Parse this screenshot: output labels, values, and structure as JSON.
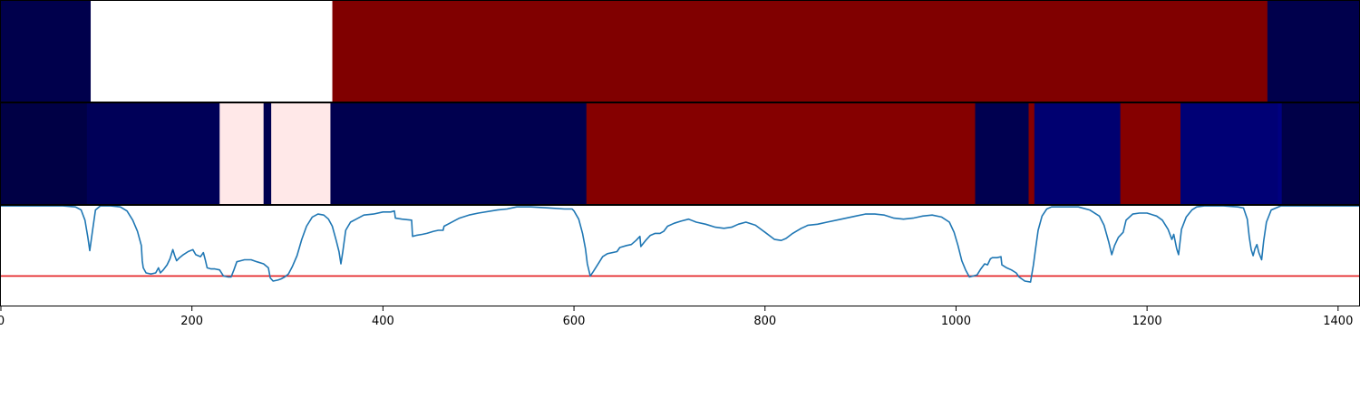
{
  "chart_data": {
    "type": "heatmap",
    "x_range": [
      0,
      1422
    ],
    "x_ticks": [
      0,
      200,
      400,
      600,
      800,
      1000,
      1200,
      1400
    ],
    "x_tick_labels": [
      "0",
      "200",
      "400",
      "600",
      "800",
      "1000",
      "1200",
      "1400"
    ],
    "tracks": [
      {
        "segments": [
          {
            "start": 0,
            "end": 94,
            "color": "#00004c"
          },
          {
            "start": 94,
            "end": 347,
            "color": "#ffffff"
          },
          {
            "start": 347,
            "end": 1326,
            "color": "#800000"
          },
          {
            "start": 1326,
            "end": 1422,
            "color": "#00004c"
          }
        ]
      },
      {
        "segments": [
          {
            "start": 0,
            "end": 90,
            "color": "#000045"
          },
          {
            "start": 90,
            "end": 229,
            "color": "#000058"
          },
          {
            "start": 229,
            "end": 275,
            "color": "#ffe8e8"
          },
          {
            "start": 275,
            "end": 283,
            "color": "#000050"
          },
          {
            "start": 283,
            "end": 345,
            "color": "#ffe8e8"
          },
          {
            "start": 345,
            "end": 613,
            "color": "#00004f"
          },
          {
            "start": 613,
            "end": 1020,
            "color": "#850000"
          },
          {
            "start": 1020,
            "end": 1076,
            "color": "#000050"
          },
          {
            "start": 1076,
            "end": 1082,
            "color": "#850000"
          },
          {
            "start": 1082,
            "end": 1172,
            "color": "#000070"
          },
          {
            "start": 1172,
            "end": 1235,
            "color": "#850000"
          },
          {
            "start": 1235,
            "end": 1337,
            "color": "#000075"
          },
          {
            "start": 1337,
            "end": 1341,
            "color": "#000080"
          },
          {
            "start": 1341,
            "end": 1422,
            "color": "#000048"
          }
        ]
      }
    ],
    "line": {
      "y_range": [
        0,
        1
      ],
      "threshold": 0.3,
      "threshold_color": "#e31a1c",
      "color": "#1f77b4",
      "points": [
        [
          0,
          0.99
        ],
        [
          20,
          0.99
        ],
        [
          40,
          0.99
        ],
        [
          65,
          0.99
        ],
        [
          78,
          0.98
        ],
        [
          84,
          0.95
        ],
        [
          88,
          0.85
        ],
        [
          91,
          0.68
        ],
        [
          93,
          0.55
        ],
        [
          96,
          0.75
        ],
        [
          99,
          0.95
        ],
        [
          104,
          0.99
        ],
        [
          115,
          0.99
        ],
        [
          125,
          0.98
        ],
        [
          132,
          0.94
        ],
        [
          138,
          0.85
        ],
        [
          143,
          0.74
        ],
        [
          147,
          0.6
        ],
        [
          148,
          0.45
        ],
        [
          149,
          0.38
        ],
        [
          152,
          0.33
        ],
        [
          157,
          0.32
        ],
        [
          162,
          0.33
        ],
        [
          165,
          0.38
        ],
        [
          167,
          0.33
        ],
        [
          170,
          0.36
        ],
        [
          174,
          0.41
        ],
        [
          177,
          0.47
        ],
        [
          180,
          0.56
        ],
        [
          182,
          0.5
        ],
        [
          184,
          0.45
        ],
        [
          187,
          0.48
        ],
        [
          191,
          0.51
        ],
        [
          196,
          0.54
        ],
        [
          201,
          0.56
        ],
        [
          204,
          0.51
        ],
        [
          209,
          0.49
        ],
        [
          212,
          0.53
        ],
        [
          214,
          0.46
        ],
        [
          216,
          0.38
        ],
        [
          220,
          0.37
        ],
        [
          224,
          0.37
        ],
        [
          229,
          0.36
        ],
        [
          233,
          0.3
        ],
        [
          238,
          0.29
        ],
        [
          241,
          0.29
        ],
        [
          244,
          0.36
        ],
        [
          247,
          0.44
        ],
        [
          251,
          0.45
        ],
        [
          255,
          0.46
        ],
        [
          262,
          0.46
        ],
        [
          268,
          0.44
        ],
        [
          275,
          0.42
        ],
        [
          280,
          0.38
        ],
        [
          282,
          0.28
        ],
        [
          285,
          0.25
        ],
        [
          290,
          0.26
        ],
        [
          293,
          0.27
        ],
        [
          297,
          0.29
        ],
        [
          301,
          0.32
        ],
        [
          305,
          0.39
        ],
        [
          310,
          0.5
        ],
        [
          315,
          0.66
        ],
        [
          320,
          0.79
        ],
        [
          326,
          0.88
        ],
        [
          332,
          0.91
        ],
        [
          338,
          0.9
        ],
        [
          343,
          0.86
        ],
        [
          347,
          0.79
        ],
        [
          351,
          0.65
        ],
        [
          354,
          0.54
        ],
        [
          356,
          0.42
        ],
        [
          358,
          0.54
        ],
        [
          361,
          0.75
        ],
        [
          366,
          0.83
        ],
        [
          372,
          0.86
        ],
        [
          380,
          0.9
        ],
        [
          390,
          0.91
        ],
        [
          400,
          0.93
        ],
        [
          408,
          0.93
        ],
        [
          412,
          0.94
        ],
        [
          413,
          0.87
        ],
        [
          420,
          0.86
        ],
        [
          430,
          0.85
        ],
        [
          431,
          0.69
        ],
        [
          435,
          0.7
        ],
        [
          441,
          0.71
        ],
        [
          446,
          0.72
        ],
        [
          453,
          0.74
        ],
        [
          458,
          0.75
        ],
        [
          463,
          0.75
        ],
        [
          464,
          0.79
        ],
        [
          470,
          0.82
        ],
        [
          480,
          0.87
        ],
        [
          490,
          0.9
        ],
        [
          500,
          0.92
        ],
        [
          520,
          0.95
        ],
        [
          530,
          0.96
        ],
        [
          540,
          0.98
        ],
        [
          555,
          0.98
        ],
        [
          575,
          0.97
        ],
        [
          590,
          0.96
        ],
        [
          598,
          0.96
        ],
        [
          600,
          0.94
        ],
        [
          605,
          0.86
        ],
        [
          609,
          0.72
        ],
        [
          612,
          0.57
        ],
        [
          614,
          0.42
        ],
        [
          617,
          0.3
        ],
        [
          620,
          0.34
        ],
        [
          626,
          0.43
        ],
        [
          630,
          0.49
        ],
        [
          635,
          0.52
        ],
        [
          645,
          0.54
        ],
        [
          648,
          0.58
        ],
        [
          655,
          0.6
        ],
        [
          660,
          0.61
        ],
        [
          665,
          0.65
        ],
        [
          669,
          0.69
        ],
        [
          670,
          0.59
        ],
        [
          675,
          0.65
        ],
        [
          680,
          0.7
        ],
        [
          685,
          0.72
        ],
        [
          690,
          0.72
        ],
        [
          694,
          0.74
        ],
        [
          698,
          0.79
        ],
        [
          705,
          0.82
        ],
        [
          712,
          0.84
        ],
        [
          720,
          0.86
        ],
        [
          728,
          0.83
        ],
        [
          738,
          0.81
        ],
        [
          748,
          0.78
        ],
        [
          757,
          0.77
        ],
        [
          765,
          0.78
        ],
        [
          772,
          0.81
        ],
        [
          780,
          0.83
        ],
        [
          790,
          0.8
        ],
        [
          800,
          0.73
        ],
        [
          810,
          0.66
        ],
        [
          817,
          0.65
        ],
        [
          822,
          0.67
        ],
        [
          829,
          0.72
        ],
        [
          838,
          0.77
        ],
        [
          845,
          0.8
        ],
        [
          855,
          0.81
        ],
        [
          865,
          0.83
        ],
        [
          880,
          0.86
        ],
        [
          895,
          0.89
        ],
        [
          905,
          0.91
        ],
        [
          915,
          0.91
        ],
        [
          925,
          0.9
        ],
        [
          935,
          0.87
        ],
        [
          945,
          0.86
        ],
        [
          955,
          0.87
        ],
        [
          965,
          0.89
        ],
        [
          975,
          0.9
        ],
        [
          985,
          0.88
        ],
        [
          993,
          0.83
        ],
        [
          998,
          0.73
        ],
        [
          1002,
          0.6
        ],
        [
          1006,
          0.45
        ],
        [
          1010,
          0.36
        ],
        [
          1014,
          0.29
        ],
        [
          1018,
          0.3
        ],
        [
          1022,
          0.31
        ],
        [
          1026,
          0.37
        ],
        [
          1030,
          0.42
        ],
        [
          1033,
          0.41
        ],
        [
          1036,
          0.47
        ],
        [
          1038,
          0.48
        ],
        [
          1043,
          0.48
        ],
        [
          1047,
          0.49
        ],
        [
          1048,
          0.41
        ],
        [
          1053,
          0.38
        ],
        [
          1058,
          0.36
        ],
        [
          1063,
          0.33
        ],
        [
          1066,
          0.29
        ],
        [
          1072,
          0.25
        ],
        [
          1078,
          0.24
        ],
        [
          1081,
          0.41
        ],
        [
          1083,
          0.55
        ],
        [
          1086,
          0.75
        ],
        [
          1090,
          0.89
        ],
        [
          1095,
          0.96
        ],
        [
          1100,
          0.98
        ],
        [
          1118,
          0.98
        ],
        [
          1128,
          0.98
        ],
        [
          1140,
          0.95
        ],
        [
          1150,
          0.89
        ],
        [
          1155,
          0.8
        ],
        [
          1160,
          0.63
        ],
        [
          1163,
          0.51
        ],
        [
          1166,
          0.6
        ],
        [
          1170,
          0.68
        ],
        [
          1175,
          0.73
        ],
        [
          1178,
          0.85
        ],
        [
          1185,
          0.91
        ],
        [
          1192,
          0.92
        ],
        [
          1200,
          0.92
        ],
        [
          1210,
          0.89
        ],
        [
          1216,
          0.85
        ],
        [
          1222,
          0.76
        ],
        [
          1226,
          0.66
        ],
        [
          1228,
          0.71
        ],
        [
          1231,
          0.57
        ],
        [
          1233,
          0.51
        ],
        [
          1236,
          0.76
        ],
        [
          1241,
          0.88
        ],
        [
          1247,
          0.95
        ],
        [
          1252,
          0.98
        ],
        [
          1260,
          0.99
        ],
        [
          1270,
          0.99
        ],
        [
          1280,
          0.99
        ],
        [
          1295,
          0.98
        ],
        [
          1301,
          0.97
        ],
        [
          1305,
          0.86
        ],
        [
          1307,
          0.68
        ],
        [
          1309,
          0.56
        ],
        [
          1311,
          0.5
        ],
        [
          1313,
          0.57
        ],
        [
          1315,
          0.61
        ],
        [
          1317,
          0.53
        ],
        [
          1320,
          0.46
        ],
        [
          1322,
          0.64
        ],
        [
          1325,
          0.83
        ],
        [
          1330,
          0.95
        ],
        [
          1340,
          0.99
        ],
        [
          1360,
          0.99
        ],
        [
          1380,
          0.99
        ],
        [
          1400,
          0.99
        ],
        [
          1422,
          0.99
        ]
      ]
    }
  }
}
